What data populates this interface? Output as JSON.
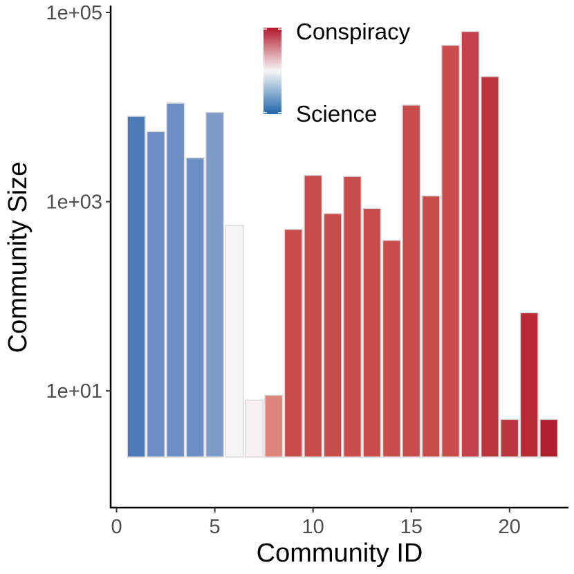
{
  "chart_data": {
    "type": "bar",
    "title": "",
    "xlabel": "Community ID",
    "ylabel": "Community Size",
    "yscale": "log10",
    "ylim": [
      1,
      100000
    ],
    "xlim": [
      -0.3,
      23.0
    ],
    "x_ticks": [
      0,
      5,
      10,
      15,
      20
    ],
    "y_ticks": [
      {
        "value": 10,
        "label": "1e+01"
      },
      {
        "value": 1000,
        "label": "1e+03"
      },
      {
        "value": 100000,
        "label": "1e+05"
      }
    ],
    "bar_base": 2,
    "x": [
      1,
      2,
      3,
      4,
      5,
      6,
      7,
      8,
      9,
      10,
      11,
      12,
      13,
      14,
      15,
      16,
      17,
      18,
      19,
      20,
      21,
      22
    ],
    "values": [
      8000,
      5500,
      11000,
      2900,
      8800,
      560,
      8,
      9,
      510,
      1900,
      750,
      1850,
      850,
      390,
      10500,
      1150,
      45000,
      63000,
      21000,
      5,
      67,
      5
    ],
    "fill_colors": [
      "#4e7bb8",
      "#6c8ec4",
      "#6c8ec4",
      "#6c8ec4",
      "#7d9ac9",
      "#f4f4f4",
      "#f6f0f0",
      "#dd847e",
      "#c94c4c",
      "#c94c4c",
      "#c94c4c",
      "#c94c4c",
      "#c94c4c",
      "#c94c4c",
      "#c94c4c",
      "#c94c4c",
      "#c94c4c",
      "#c3404a",
      "#bb343e",
      "#bb343e",
      "#b82b36",
      "#b01e2f"
    ],
    "legend": {
      "position": "top-right",
      "labels": [
        "Conspiracy",
        "Science"
      ],
      "gradient_colors": [
        "#b2182b",
        "#f7f7f7",
        "#2166ac"
      ]
    }
  }
}
